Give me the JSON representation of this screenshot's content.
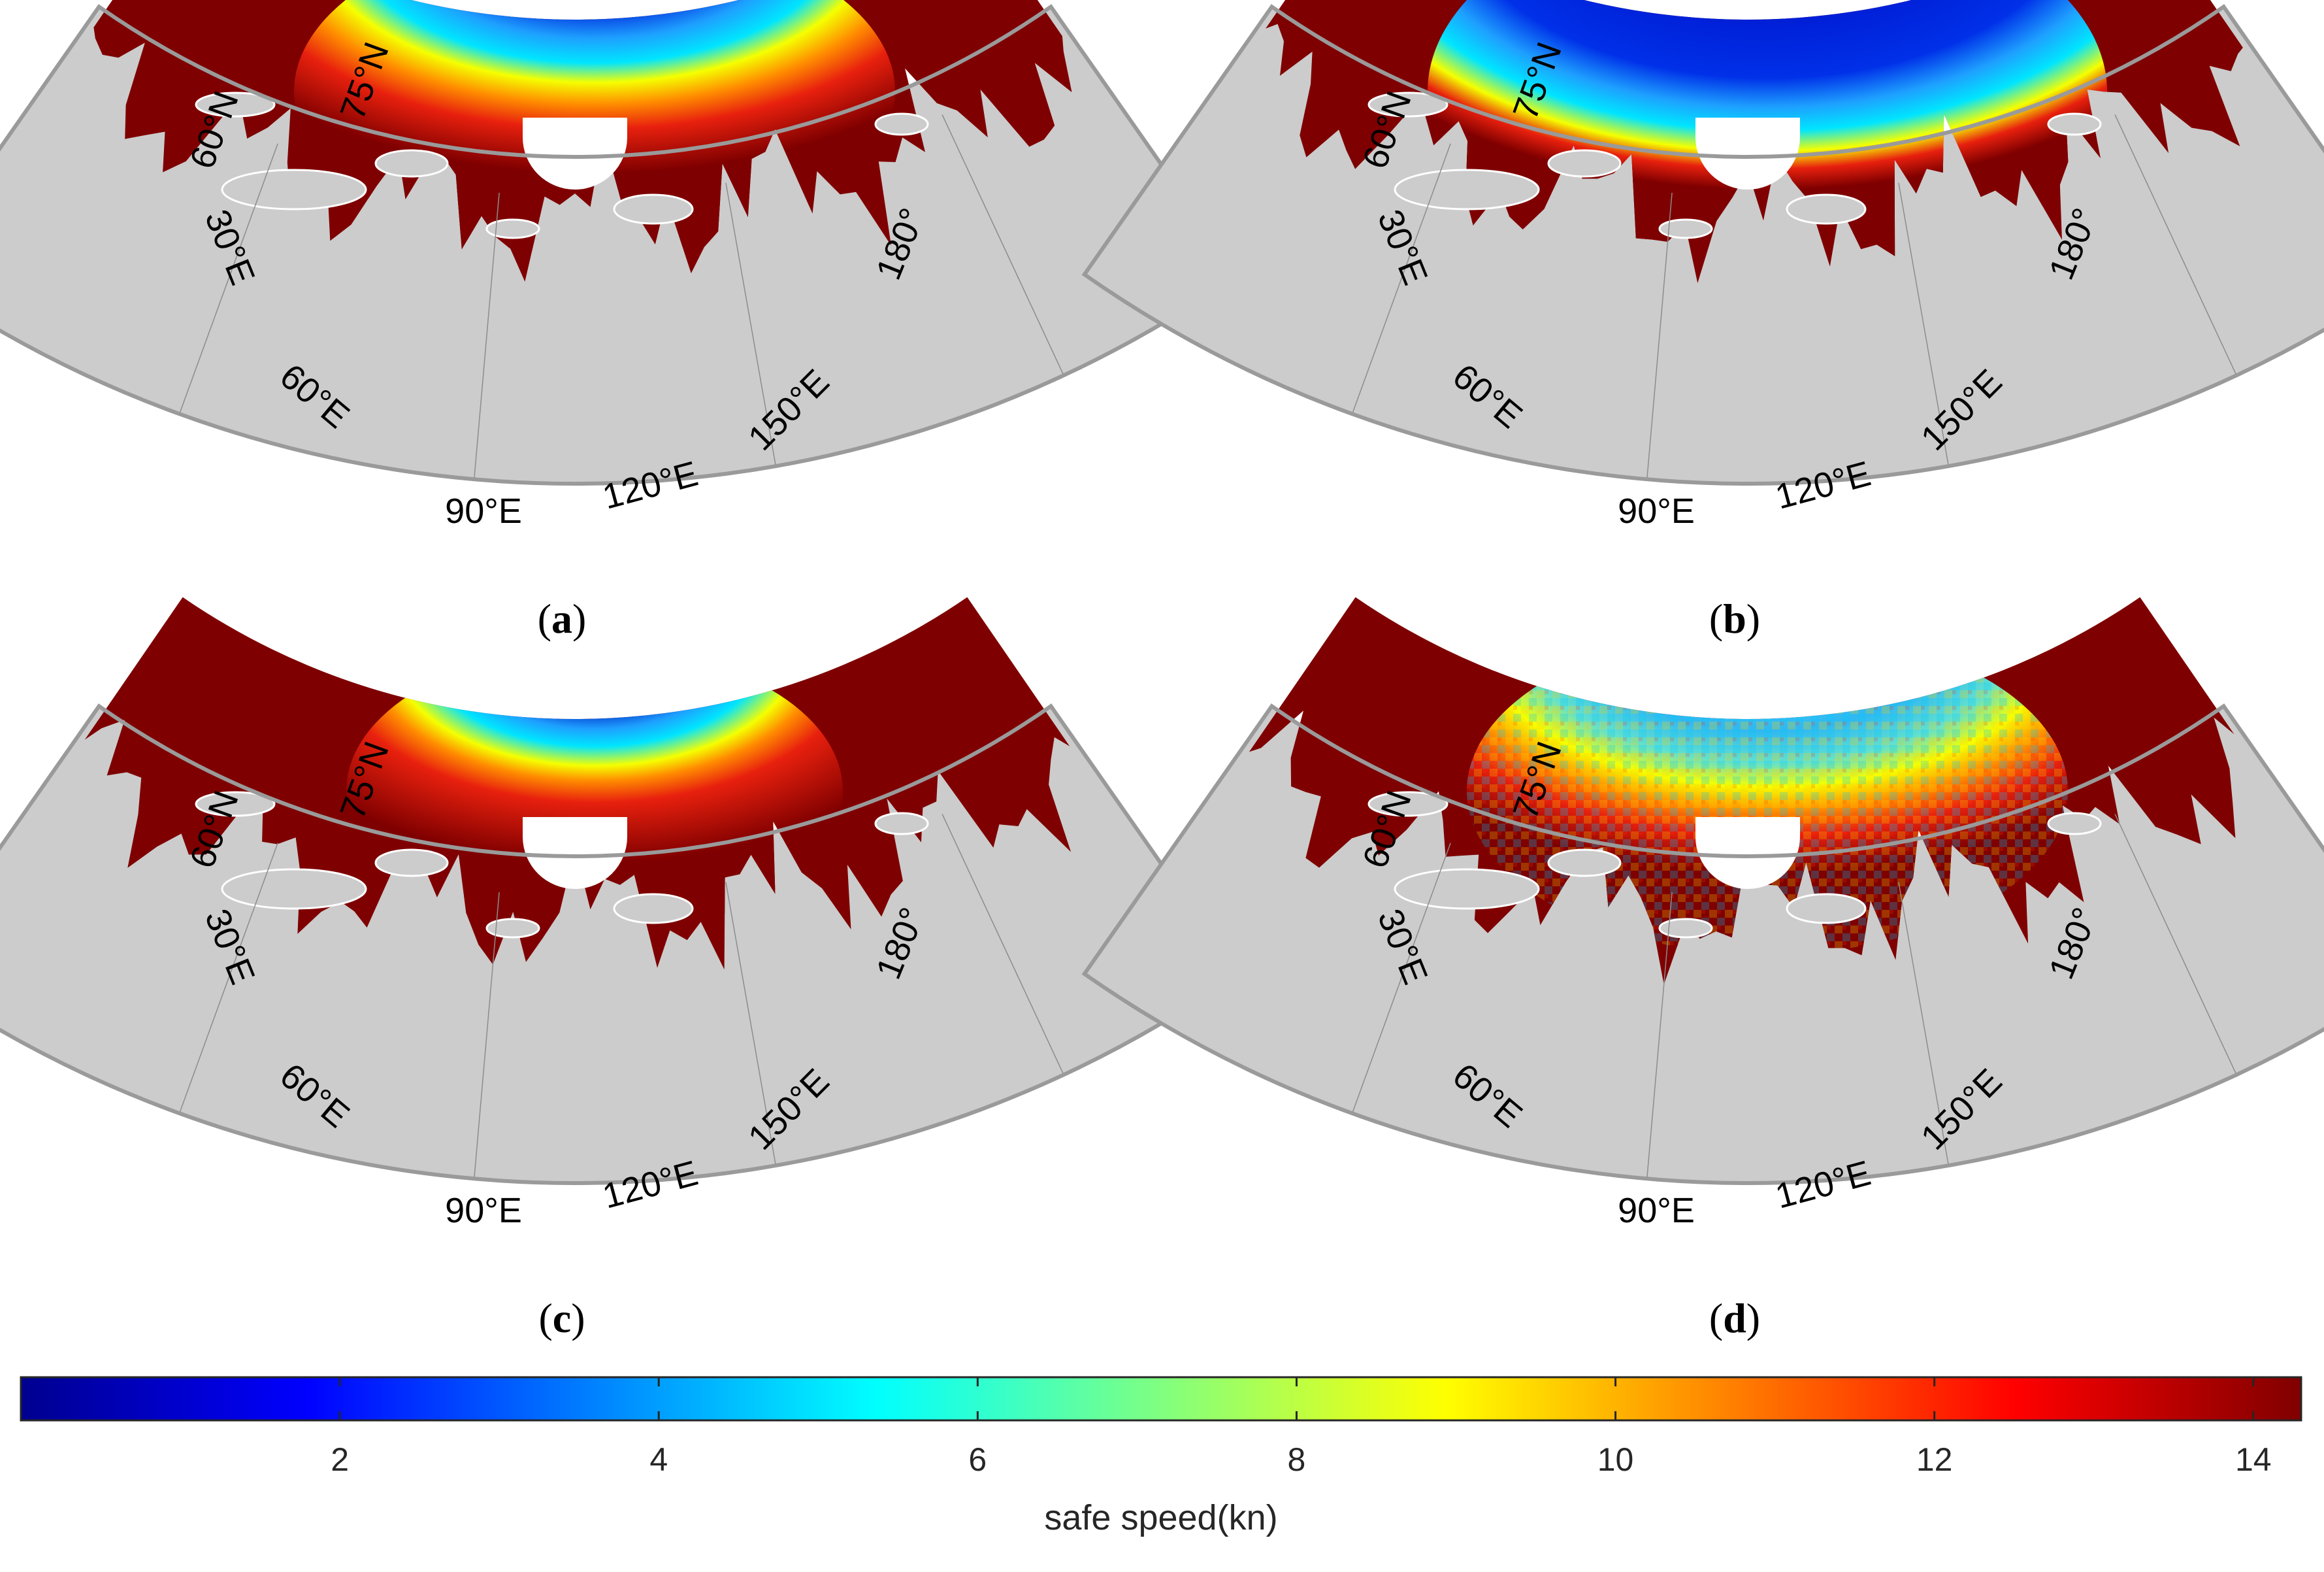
{
  "colors": {
    "land": "#cccccc",
    "land_edge": "#9a9a9a",
    "grid_line": "#8c8c8c",
    "dark_red": "#7f0000",
    "red": "#e8200e",
    "orange": "#ff8c00",
    "yellow": "#f5ff00",
    "cyan": "#00e5ff",
    "light_blue": "#1ea0ff",
    "blue": "#0030e0",
    "dark_blue": "#00008f"
  },
  "panels": [
    {
      "id": "a",
      "caption": {
        "open": "(",
        "letter": "a",
        "close": ")"
      },
      "pattern": "smooth-ice",
      "labels": {
        "lat1": "60°N",
        "lat2": "75°N",
        "lon30": "30°E",
        "lon60": "60°E",
        "lon90": "90°E",
        "lon120": "120°E",
        "lon150": "150°E",
        "lon180": "180°"
      }
    },
    {
      "id": "b",
      "caption": {
        "open": "(",
        "letter": "b",
        "close": ")"
      },
      "pattern": "wide-ice",
      "labels": {
        "lat1": "60°N",
        "lat2": "75°N",
        "lon30": "30°E",
        "lon60": "60°E",
        "lon90": "90°E",
        "lon120": "120°E",
        "lon150": "150°E",
        "lon180": "180°"
      }
    },
    {
      "id": "c",
      "caption": {
        "open": "(",
        "letter": "c",
        "close": ")"
      },
      "pattern": "narrow-ice",
      "labels": {
        "lat1": "60°N",
        "lat2": "75°N",
        "lon30": "30°E",
        "lon60": "60°E",
        "lon90": "90°E",
        "lon120": "120°E",
        "lon150": "150°E",
        "lon180": "180°"
      }
    },
    {
      "id": "d",
      "caption": {
        "open": "(",
        "letter": "d",
        "close": ")"
      },
      "pattern": "noisy-ice",
      "labels": {
        "lat1": "60°N",
        "lat2": "75°N",
        "lon30": "30°E",
        "lon60": "60°E",
        "lon90": "90°E",
        "lon120": "120°E",
        "lon150": "150°E",
        "lon180": "180°"
      }
    }
  ],
  "colorbar": {
    "title": "safe speed(kn)",
    "min": 0,
    "max": 14.3,
    "ticks": [
      2,
      4,
      6,
      8,
      10,
      12,
      14
    ],
    "tick_labels": [
      "2",
      "4",
      "6",
      "8",
      "10",
      "12",
      "14"
    ],
    "colormap": [
      "#00008f",
      "#0000ff",
      "#0080ff",
      "#00ffff",
      "#80ff80",
      "#ffff00",
      "#ff8000",
      "#ff0000",
      "#800000"
    ]
  }
}
